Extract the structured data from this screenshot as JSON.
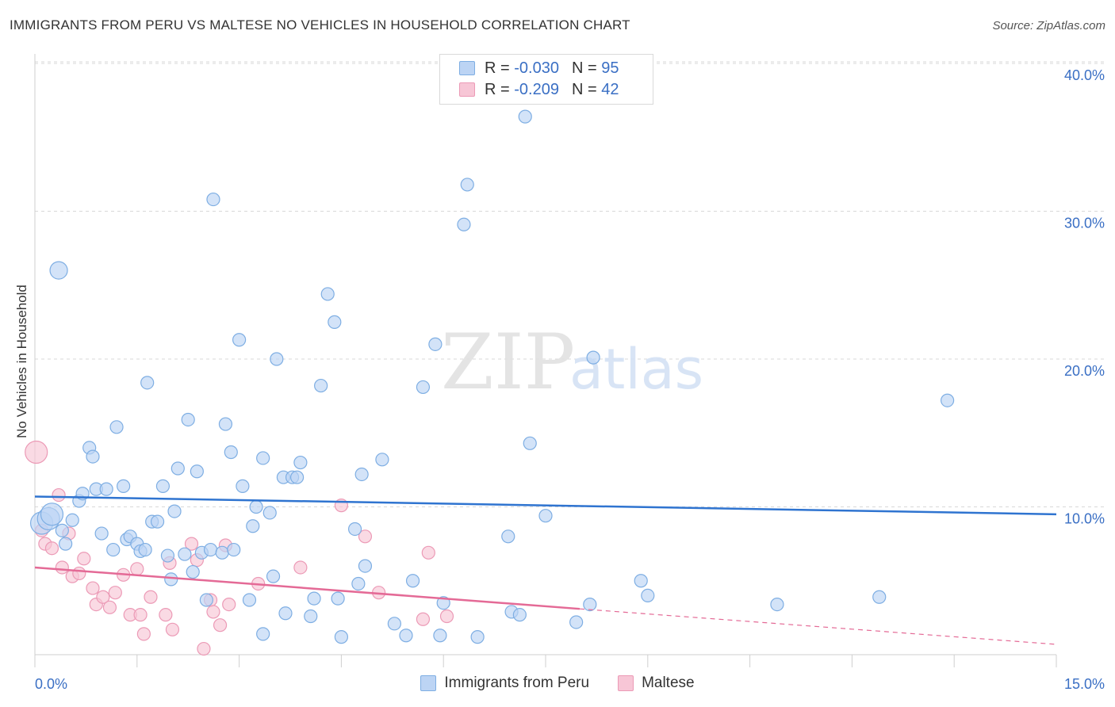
{
  "title": "IMMIGRANTS FROM PERU VS MALTESE NO VEHICLES IN HOUSEHOLD CORRELATION CHART",
  "source": "Source: ZipAtlas.com",
  "watermark": {
    "zip": "ZIP",
    "atlas": "atlas"
  },
  "legend_top": {
    "rows": [
      {
        "r_label": "R = ",
        "r_value": "-0.030",
        "n_label": "N = ",
        "n_value": "95"
      },
      {
        "r_label": "R = ",
        "r_value": "-0.209",
        "n_label": "N = ",
        "n_value": "42"
      }
    ]
  },
  "legend_bottom": {
    "series0": "Immigrants from Peru",
    "series1": "Maltese"
  },
  "colors": {
    "peru_fill": "#bcd4f4",
    "peru_stroke": "#7eaee3",
    "peru_line": "#2f74d0",
    "maltese_fill": "#f7c6d6",
    "maltese_stroke": "#ec9ab6",
    "maltese_line": "#e46a96",
    "tick_text": "#3a6fc4",
    "grid": "#d8d8d8"
  },
  "chart_data": {
    "type": "scatter",
    "title": "IMMIGRANTS FROM PERU VS MALTESE NO VEHICLES IN HOUSEHOLD CORRELATION CHART",
    "xlabel": "",
    "ylabel": "No Vehicles in Household",
    "xlim": [
      0,
      15
    ],
    "ylim": [
      0,
      40
    ],
    "x_tick_labels": [
      "0.0%",
      "15.0%"
    ],
    "y_ticks": [
      10,
      20,
      30,
      40
    ],
    "y_tick_labels": [
      "10.0%",
      "20.0%",
      "30.0%",
      "40.0%"
    ],
    "grid": true,
    "series": [
      {
        "name": "Immigrants from Peru",
        "r": -0.03,
        "n": 95,
        "trend": {
          "x": [
            0,
            15
          ],
          "y": [
            10.7,
            9.5
          ]
        },
        "points": [
          {
            "x": 0.1,
            "y": 8.9,
            "s": "l"
          },
          {
            "x": 0.2,
            "y": 9.2,
            "s": "l"
          },
          {
            "x": 0.25,
            "y": 9.5,
            "s": "l"
          },
          {
            "x": 0.35,
            "y": 26.0,
            "s": "m"
          },
          {
            "x": 0.4,
            "y": 8.4
          },
          {
            "x": 0.45,
            "y": 7.5
          },
          {
            "x": 0.55,
            "y": 9.1
          },
          {
            "x": 0.65,
            "y": 10.4
          },
          {
            "x": 0.7,
            "y": 10.9
          },
          {
            "x": 0.8,
            "y": 14.0
          },
          {
            "x": 0.85,
            "y": 13.4
          },
          {
            "x": 0.9,
            "y": 11.2
          },
          {
            "x": 0.98,
            "y": 8.2
          },
          {
            "x": 1.05,
            "y": 11.2
          },
          {
            "x": 1.15,
            "y": 7.1
          },
          {
            "x": 1.2,
            "y": 15.4
          },
          {
            "x": 1.3,
            "y": 11.4
          },
          {
            "x": 1.35,
            "y": 7.8
          },
          {
            "x": 1.4,
            "y": 8.0
          },
          {
            "x": 1.5,
            "y": 7.5
          },
          {
            "x": 1.55,
            "y": 7.0
          },
          {
            "x": 1.62,
            "y": 7.1
          },
          {
            "x": 1.65,
            "y": 18.4
          },
          {
            "x": 1.72,
            "y": 9.0
          },
          {
            "x": 1.8,
            "y": 9.0
          },
          {
            "x": 1.88,
            "y": 11.4
          },
          {
            "x": 1.95,
            "y": 6.7
          },
          {
            "x": 2.0,
            "y": 5.1
          },
          {
            "x": 2.05,
            "y": 9.7
          },
          {
            "x": 2.1,
            "y": 12.6
          },
          {
            "x": 2.2,
            "y": 6.8
          },
          {
            "x": 2.25,
            "y": 15.9
          },
          {
            "x": 2.32,
            "y": 5.6
          },
          {
            "x": 2.38,
            "y": 12.4
          },
          {
            "x": 2.45,
            "y": 6.9
          },
          {
            "x": 2.52,
            "y": 3.7
          },
          {
            "x": 2.58,
            "y": 7.1
          },
          {
            "x": 2.62,
            "y": 30.8
          },
          {
            "x": 2.75,
            "y": 6.9
          },
          {
            "x": 2.8,
            "y": 15.6
          },
          {
            "x": 2.88,
            "y": 13.7
          },
          {
            "x": 2.92,
            "y": 7.1
          },
          {
            "x": 3.0,
            "y": 21.3
          },
          {
            "x": 3.05,
            "y": 11.4
          },
          {
            "x": 3.15,
            "y": 3.7
          },
          {
            "x": 3.2,
            "y": 8.7
          },
          {
            "x": 3.25,
            "y": 10.0
          },
          {
            "x": 3.35,
            "y": 13.3
          },
          {
            "x": 3.35,
            "y": 1.4
          },
          {
            "x": 3.45,
            "y": 9.6
          },
          {
            "x": 3.5,
            "y": 5.3
          },
          {
            "x": 3.55,
            "y": 20.0
          },
          {
            "x": 3.65,
            "y": 12.0
          },
          {
            "x": 3.68,
            "y": 2.8
          },
          {
            "x": 3.78,
            "y": 12.0
          },
          {
            "x": 3.85,
            "y": 12.0
          },
          {
            "x": 3.9,
            "y": 13.0
          },
          {
            "x": 4.05,
            "y": 2.6
          },
          {
            "x": 4.1,
            "y": 3.8
          },
          {
            "x": 4.2,
            "y": 18.2
          },
          {
            "x": 4.3,
            "y": 24.4
          },
          {
            "x": 4.4,
            "y": 22.5
          },
          {
            "x": 4.45,
            "y": 3.8
          },
          {
            "x": 4.5,
            "y": 1.2
          },
          {
            "x": 4.7,
            "y": 8.5
          },
          {
            "x": 4.75,
            "y": 4.8
          },
          {
            "x": 4.8,
            "y": 12.2
          },
          {
            "x": 4.85,
            "y": 6.0
          },
          {
            "x": 5.1,
            "y": 13.2
          },
          {
            "x": 5.28,
            "y": 2.1
          },
          {
            "x": 5.45,
            "y": 1.3
          },
          {
            "x": 5.55,
            "y": 5.0
          },
          {
            "x": 5.7,
            "y": 18.1
          },
          {
            "x": 5.88,
            "y": 21.0
          },
          {
            "x": 5.95,
            "y": 1.3
          },
          {
            "x": 6.0,
            "y": 3.5
          },
          {
            "x": 6.3,
            "y": 29.1
          },
          {
            "x": 6.35,
            "y": 31.8
          },
          {
            "x": 6.5,
            "y": 1.2
          },
          {
            "x": 6.95,
            "y": 8.0
          },
          {
            "x": 7.0,
            "y": 2.9
          },
          {
            "x": 7.12,
            "y": 2.7
          },
          {
            "x": 7.2,
            "y": 36.4
          },
          {
            "x": 7.27,
            "y": 14.3
          },
          {
            "x": 7.5,
            "y": 9.4
          },
          {
            "x": 7.95,
            "y": 2.2
          },
          {
            "x": 8.15,
            "y": 3.4
          },
          {
            "x": 8.2,
            "y": 20.1
          },
          {
            "x": 8.9,
            "y": 5.0
          },
          {
            "x": 9.0,
            "y": 4.0
          },
          {
            "x": 10.9,
            "y": 3.4
          },
          {
            "x": 12.4,
            "y": 3.9
          },
          {
            "x": 13.4,
            "y": 17.2
          }
        ]
      },
      {
        "name": "Maltese",
        "r": -0.209,
        "n": 42,
        "trend": {
          "x": [
            0,
            8
          ],
          "y": [
            5.9,
            3.1
          ]
        },
        "trend_ext": {
          "x": [
            8,
            15
          ],
          "y": [
            3.1,
            0.7
          ]
        },
        "points": [
          {
            "x": 0.02,
            "y": 13.7,
            "s": "l"
          },
          {
            "x": 0.1,
            "y": 8.4
          },
          {
            "x": 0.15,
            "y": 7.5
          },
          {
            "x": 0.25,
            "y": 7.2
          },
          {
            "x": 0.35,
            "y": 10.8
          },
          {
            "x": 0.4,
            "y": 5.9
          },
          {
            "x": 0.5,
            "y": 8.2
          },
          {
            "x": 0.55,
            "y": 5.3
          },
          {
            "x": 0.65,
            "y": 5.5
          },
          {
            "x": 0.72,
            "y": 6.5
          },
          {
            "x": 0.85,
            "y": 4.5
          },
          {
            "x": 0.9,
            "y": 3.4
          },
          {
            "x": 1.0,
            "y": 3.9
          },
          {
            "x": 1.1,
            "y": 3.2
          },
          {
            "x": 1.18,
            "y": 4.2
          },
          {
            "x": 1.3,
            "y": 5.4
          },
          {
            "x": 1.4,
            "y": 2.7
          },
          {
            "x": 1.5,
            "y": 5.8
          },
          {
            "x": 1.55,
            "y": 2.7
          },
          {
            "x": 1.6,
            "y": 1.4
          },
          {
            "x": 1.7,
            "y": 3.9
          },
          {
            "x": 1.92,
            "y": 2.7
          },
          {
            "x": 1.98,
            "y": 6.2
          },
          {
            "x": 2.02,
            "y": 1.7
          },
          {
            "x": 2.3,
            "y": 7.5
          },
          {
            "x": 2.38,
            "y": 6.4
          },
          {
            "x": 2.48,
            "y": 0.4
          },
          {
            "x": 2.58,
            "y": 3.7
          },
          {
            "x": 2.62,
            "y": 2.9
          },
          {
            "x": 2.72,
            "y": 2.0
          },
          {
            "x": 2.8,
            "y": 7.4
          },
          {
            "x": 2.85,
            "y": 3.4
          },
          {
            "x": 3.28,
            "y": 4.8
          },
          {
            "x": 3.9,
            "y": 5.9
          },
          {
            "x": 4.5,
            "y": 10.1
          },
          {
            "x": 4.85,
            "y": 8.0
          },
          {
            "x": 5.05,
            "y": 4.2
          },
          {
            "x": 5.7,
            "y": 2.4
          },
          {
            "x": 5.78,
            "y": 6.9
          },
          {
            "x": 6.05,
            "y": 2.6
          }
        ]
      }
    ]
  }
}
